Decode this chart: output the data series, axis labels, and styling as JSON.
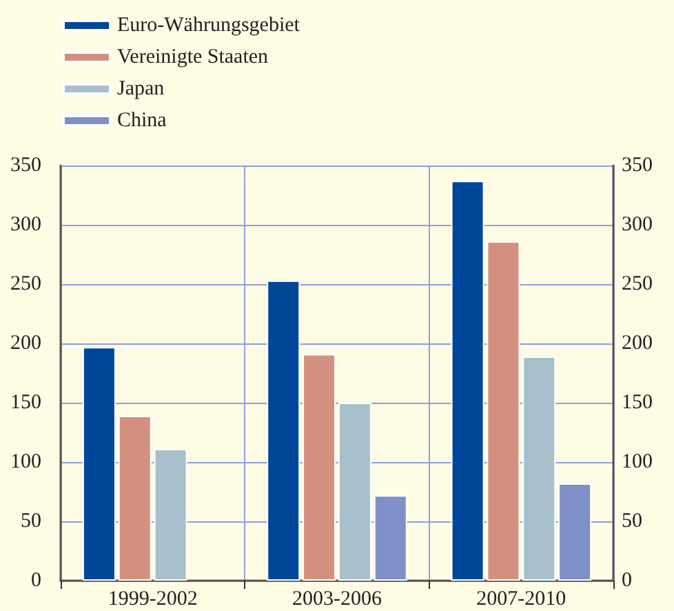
{
  "chart_data": {
    "type": "bar",
    "categories": [
      "1999-2002",
      "2003-2006",
      "2007-2010"
    ],
    "series": [
      {
        "name": "Euro-Währungsgebiet",
        "color": "#00479a",
        "values": [
          197,
          253,
          337
        ]
      },
      {
        "name": "Vereinigte Staaten",
        "color": "#d4907f",
        "values": [
          139,
          191,
          286
        ]
      },
      {
        "name": "Japan",
        "color": "#a8bfcc",
        "values": [
          111,
          150,
          189
        ]
      },
      {
        "name": "China",
        "color": "#7f8fc8",
        "values": [
          null,
          72,
          82
        ]
      }
    ],
    "ylim": [
      0,
      350
    ],
    "yticks": [
      0,
      50,
      100,
      150,
      200,
      250,
      300,
      350
    ],
    "y2lim": [
      0,
      350
    ],
    "y2ticks": [
      0,
      50,
      100,
      150,
      200,
      250,
      300,
      350
    ],
    "grid": true,
    "legend": "top left"
  }
}
